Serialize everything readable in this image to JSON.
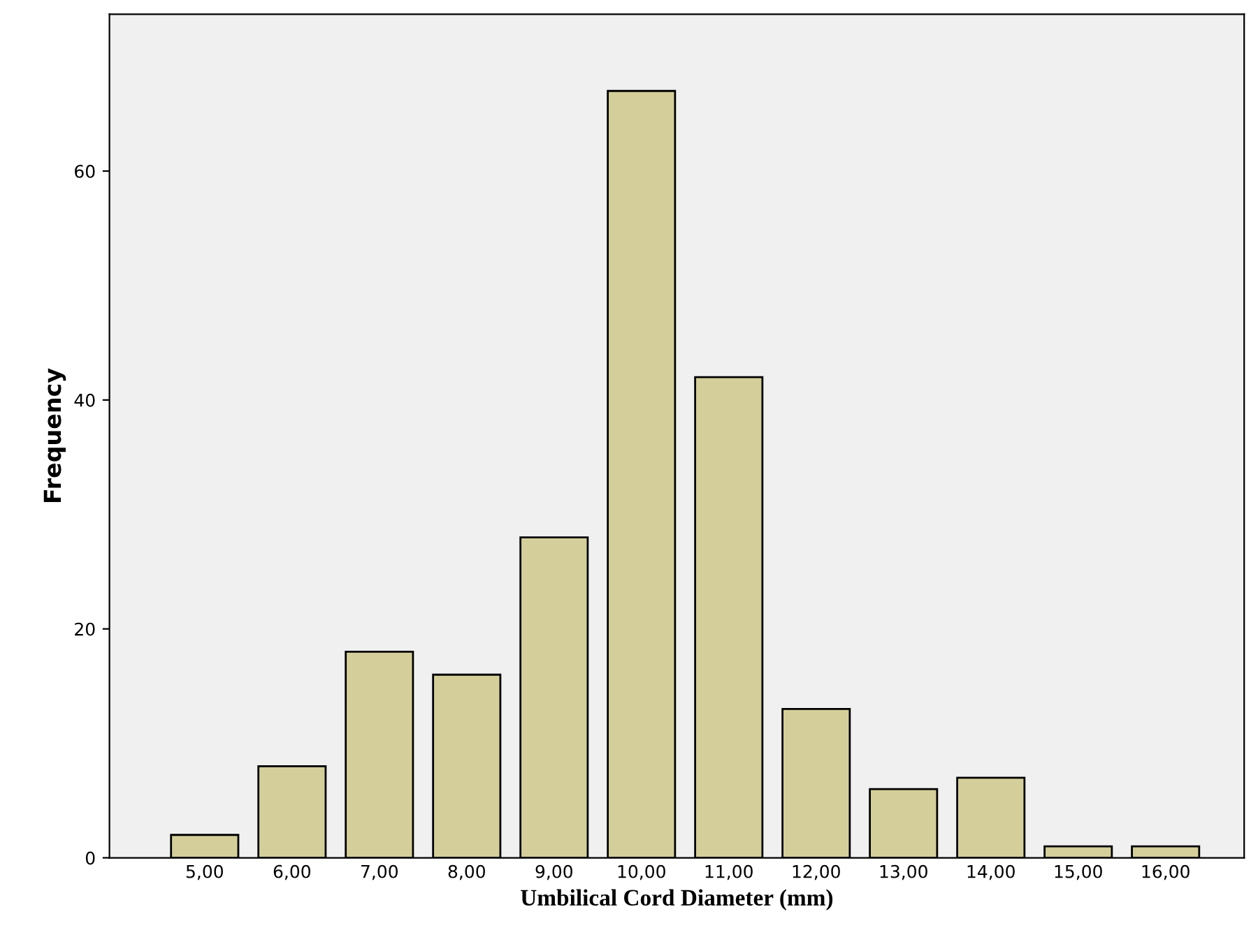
{
  "chart_data": {
    "type": "bar",
    "xlabel": "Umbilical Cord Diameter (mm)",
    "ylabel": "Frequency",
    "categories": [
      "5,00",
      "6,00",
      "7,00",
      "8,00",
      "9,00",
      "10,00",
      "11,00",
      "12,00",
      "13,00",
      "14,00",
      "15,00",
      "16,00"
    ],
    "values": [
      2,
      8,
      18,
      16,
      28,
      67,
      42,
      13,
      6,
      7,
      1,
      1
    ],
    "color": "#d4cf9a",
    "ylim": [
      0,
      73.7
    ],
    "yticks": [
      0,
      20,
      40,
      60
    ],
    "grid": false,
    "legend": false
  }
}
